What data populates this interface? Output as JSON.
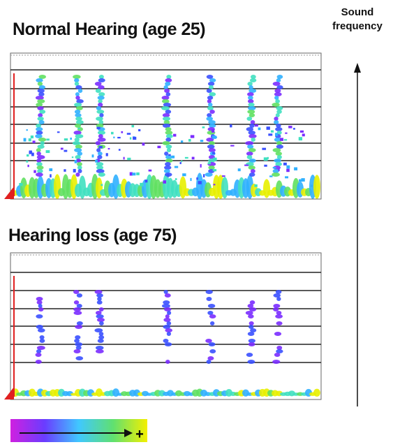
{
  "panels": [
    {
      "title": "Normal Hearing (age 25)"
    },
    {
      "title": "Hearing loss (age 75)"
    }
  ],
  "axis_label": {
    "lines": [
      "Sound",
      "frequency"
    ]
  },
  "legend": {
    "plus": "+"
  }
}
